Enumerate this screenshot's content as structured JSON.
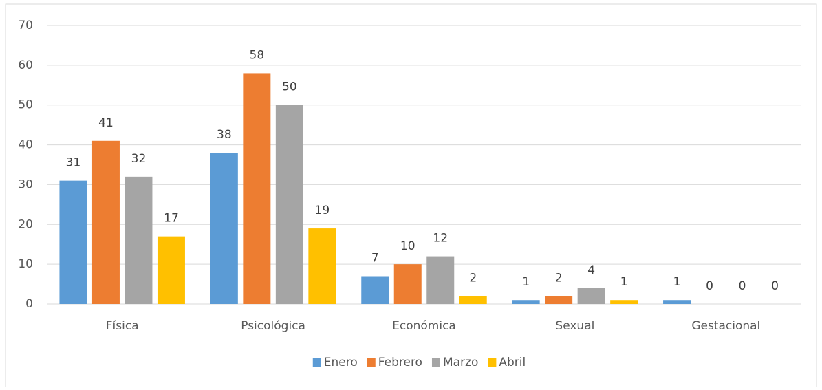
{
  "chart_data": {
    "type": "bar",
    "categories": [
      "Física",
      "Psicológica",
      "Económica",
      "Sexual",
      "Gestacional"
    ],
    "series": [
      {
        "name": "Enero",
        "color": "#5b9bd5",
        "values": [
          31,
          38,
          7,
          1,
          1
        ]
      },
      {
        "name": "Febrero",
        "color": "#ed7d31",
        "values": [
          41,
          58,
          10,
          2,
          0
        ]
      },
      {
        "name": "Marzo",
        "color": "#a5a5a5",
        "values": [
          32,
          50,
          12,
          4,
          0
        ]
      },
      {
        "name": "Abril",
        "color": "#ffc000",
        "values": [
          17,
          19,
          2,
          1,
          0
        ]
      }
    ],
    "ylim": [
      0,
      70
    ],
    "yticks": [
      0,
      10,
      20,
      30,
      40,
      50,
      60,
      70
    ],
    "grid": true,
    "legend": "bottom"
  }
}
